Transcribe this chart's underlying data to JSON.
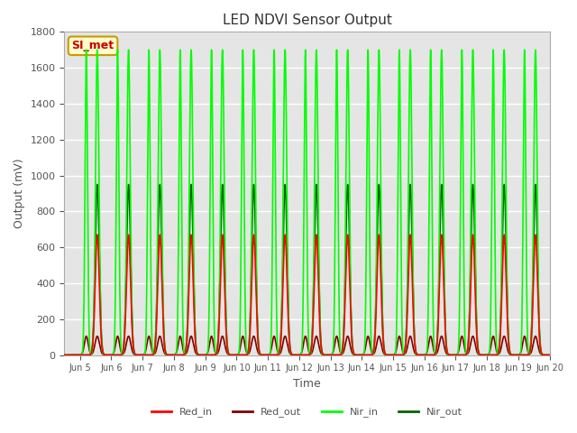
{
  "title": "LED NDVI Sensor Output",
  "xlabel": "Time",
  "ylabel": "Output (mV)",
  "ylim": [
    0,
    1800
  ],
  "xlim_days": [
    4.5,
    20.0
  ],
  "yticks": [
    0,
    200,
    400,
    600,
    800,
    1000,
    1200,
    1400,
    1600,
    1800
  ],
  "xtick_labels": [
    "Jun 5",
    "Jun 6",
    "Jun 7",
    "Jun 8",
    "Jun 9",
    "Jun 10",
    "Jun 11",
    "Jun 12",
    "Jun 13",
    "Jun 14",
    "Jun 15",
    "Jun 16",
    "Jun 17",
    "Jun 18",
    "Jun 19",
    "Jun 20"
  ],
  "xtick_positions": [
    5,
    6,
    7,
    8,
    9,
    10,
    11,
    12,
    13,
    14,
    15,
    16,
    17,
    18,
    19,
    20
  ],
  "period_days": 1.0,
  "start_day": 5.0,
  "num_peaks": 15,
  "red_in_peak": 670,
  "red_out_peak": 105,
  "nir_in_peak": 1700,
  "nir_out_peak": 950,
  "colors": {
    "red_in": "#ff0000",
    "red_out": "#800000",
    "nir_in": "#00ff00",
    "nir_out": "#006400"
  },
  "bg_color": "#ffffff",
  "plot_bg_color": "#e5e5e5",
  "grid_color": "#ffffff",
  "watermark_text": "SI_met",
  "watermark_bg": "#ffffcc",
  "watermark_border": "#cc9900",
  "watermark_fg": "#cc0000"
}
